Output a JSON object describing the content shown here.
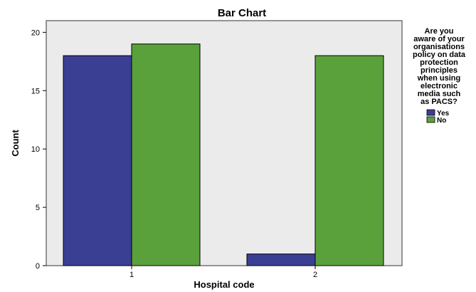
{
  "chart_data": {
    "type": "bar",
    "title": "Bar Chart",
    "xlabel": "Hospital code",
    "ylabel": "Count",
    "categories": [
      "1",
      "2"
    ],
    "series": [
      {
        "name": "Yes",
        "values": [
          18,
          1
        ]
      },
      {
        "name": "No",
        "values": [
          19,
          18
        ]
      }
    ],
    "ylim": [
      0,
      21
    ],
    "yticks": [
      0,
      5,
      10,
      15,
      20
    ],
    "grid": false,
    "legend": {
      "title_lines": [
        "Are you",
        "aware of your",
        "organisations",
        "policy on data",
        "protection",
        "principles",
        "when using",
        "electronic",
        "media such",
        "as PACS?"
      ],
      "placement": "right"
    },
    "colors": {
      "Yes": "#3b3f93",
      "No": "#5aa13b",
      "plot_background": "#ebebeb"
    }
  }
}
